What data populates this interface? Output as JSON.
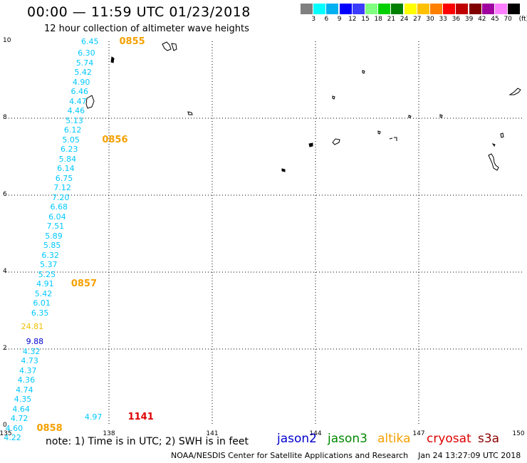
{
  "header": {
    "title": "00:00 — 11:59 UTC 01/23/2018",
    "subtitle": "12 hour collection of altimeter wave heights"
  },
  "color_scale": {
    "unit": "(ft)",
    "colors": [
      "#808080",
      "#00ffff",
      "#00b0f0",
      "#0000ff",
      "#3c3cff",
      "#80ff80",
      "#00d000",
      "#008000",
      "#ffff00",
      "#ffc000",
      "#ff8000",
      "#ff0000",
      "#c00000",
      "#800000",
      "#a000a0",
      "#ff80ff",
      "#000000"
    ],
    "labels": [
      "3",
      "6",
      "9",
      "12",
      "15",
      "18",
      "21",
      "24",
      "27",
      "30",
      "33",
      "36",
      "39",
      "42",
      "45",
      "70"
    ]
  },
  "axes": {
    "y_labels": [
      "10",
      "8",
      "6",
      "4",
      "2",
      "0"
    ],
    "x_labels": [
      "135",
      "138",
      "141",
      "144",
      "147",
      "150"
    ]
  },
  "observations": [
    {
      "v": "6.45",
      "c": "#00c8ff",
      "lon": 137.7,
      "lat": 10.0
    },
    {
      "v": "6.30",
      "c": "#00c8ff",
      "lon": 137.6,
      "lat": 9.7
    },
    {
      "v": "5.74",
      "c": "#00c8ff",
      "lon": 137.55,
      "lat": 9.45
    },
    {
      "v": "5.42",
      "c": "#00c8ff",
      "lon": 137.5,
      "lat": 9.2
    },
    {
      "v": "4.90",
      "c": "#00c8ff",
      "lon": 137.45,
      "lat": 8.95
    },
    {
      "v": "6.46",
      "c": "#00c8ff",
      "lon": 137.4,
      "lat": 8.7
    },
    {
      "v": "4.47",
      "c": "#00c8ff",
      "lon": 137.35,
      "lat": 8.45
    },
    {
      "v": "4.46",
      "c": "#00c8ff",
      "lon": 137.3,
      "lat": 8.2
    },
    {
      "v": "5.13",
      "c": "#00c8ff",
      "lon": 137.25,
      "lat": 7.95
    },
    {
      "v": "6.12",
      "c": "#00c8ff",
      "lon": 137.2,
      "lat": 7.7
    },
    {
      "v": "5.05",
      "c": "#00c8ff",
      "lon": 137.15,
      "lat": 7.45
    },
    {
      "v": "6.23",
      "c": "#00c8ff",
      "lon": 137.1,
      "lat": 7.2
    },
    {
      "v": "5.84",
      "c": "#00c8ff",
      "lon": 137.05,
      "lat": 6.95
    },
    {
      "v": "6.14",
      "c": "#00c8ff",
      "lon": 137.0,
      "lat": 6.7
    },
    {
      "v": "6.75",
      "c": "#00c8ff",
      "lon": 136.95,
      "lat": 6.45
    },
    {
      "v": "7.12",
      "c": "#00c8ff",
      "lon": 136.9,
      "lat": 6.2
    },
    {
      "v": "7.20",
      "c": "#00c8ff",
      "lon": 136.85,
      "lat": 5.95
    },
    {
      "v": "6.68",
      "c": "#00c8ff",
      "lon": 136.8,
      "lat": 5.7
    },
    {
      "v": "6.04",
      "c": "#00c8ff",
      "lon": 136.75,
      "lat": 5.45
    },
    {
      "v": "7.51",
      "c": "#00c8ff",
      "lon": 136.7,
      "lat": 5.2
    },
    {
      "v": "5.89",
      "c": "#00c8ff",
      "lon": 136.65,
      "lat": 4.95
    },
    {
      "v": "5.85",
      "c": "#00c8ff",
      "lon": 136.6,
      "lat": 4.7
    },
    {
      "v": "6.32",
      "c": "#00c8ff",
      "lon": 136.55,
      "lat": 4.45
    },
    {
      "v": "5.37",
      "c": "#00c8ff",
      "lon": 136.5,
      "lat": 4.2
    },
    {
      "v": "5.25",
      "c": "#00c8ff",
      "lon": 136.45,
      "lat": 3.95
    },
    {
      "v": "4.91",
      "c": "#00c8ff",
      "lon": 136.4,
      "lat": 3.7
    },
    {
      "v": "5.42",
      "c": "#00c8ff",
      "lon": 136.35,
      "lat": 3.45
    },
    {
      "v": "6.01",
      "c": "#00c8ff",
      "lon": 136.3,
      "lat": 3.2
    },
    {
      "v": "6.35",
      "c": "#00c8ff",
      "lon": 136.25,
      "lat": 2.95
    },
    {
      "v": "24.81",
      "c": "#f0c000",
      "lon": 136.1,
      "lat": 2.6
    },
    {
      "v": "9.88",
      "c": "#0000cc",
      "lon": 136.1,
      "lat": 2.2
    },
    {
      "v": "4.32",
      "c": "#00c8ff",
      "lon": 136.0,
      "lat": 1.95
    },
    {
      "v": "4.73",
      "c": "#00c8ff",
      "lon": 135.95,
      "lat": 1.7
    },
    {
      "v": "4.37",
      "c": "#00c8ff",
      "lon": 135.9,
      "lat": 1.45
    },
    {
      "v": "4.36",
      "c": "#00c8ff",
      "lon": 135.85,
      "lat": 1.2
    },
    {
      "v": "4.74",
      "c": "#00c8ff",
      "lon": 135.8,
      "lat": 0.95
    },
    {
      "v": "4.35",
      "c": "#00c8ff",
      "lon": 135.75,
      "lat": 0.7
    },
    {
      "v": "4.64",
      "c": "#00c8ff",
      "lon": 135.7,
      "lat": 0.45
    },
    {
      "v": "4.72",
      "c": "#00c8ff",
      "lon": 135.65,
      "lat": 0.2
    },
    {
      "v": "4.60",
      "c": "#00c8ff",
      "lon": 135.5,
      "lat": -0.05
    },
    {
      "v": "4.22",
      "c": "#00c8ff",
      "lon": 135.45,
      "lat": -0.3
    },
    {
      "v": "4.97",
      "c": "#00c8ff",
      "lon": 137.8,
      "lat": 0.25
    }
  ],
  "time_marks": [
    {
      "t": "0855",
      "c": "#f5a000",
      "lon": 138.3,
      "lat": 10.0
    },
    {
      "t": "0856",
      "c": "#f5a000",
      "lon": 137.8,
      "lat": 7.45
    },
    {
      "t": "0857",
      "c": "#f5a000",
      "lon": 136.9,
      "lat": 3.7
    },
    {
      "t": "0858",
      "c": "#f5a000",
      "lon": 135.9,
      "lat": -0.05
    },
    {
      "t": "1141",
      "c": "#dd0000",
      "lon": 138.55,
      "lat": 0.25
    }
  ],
  "note": "note:  1) Time is in UTC;  2) SWH is in feet",
  "legend": [
    {
      "name": "jason2",
      "color": "#0000cc"
    },
    {
      "name": "jason3",
      "color": "#008800"
    },
    {
      "name": "altika",
      "color": "#f5a000"
    },
    {
      "name": "cryosat",
      "color": "#dd0000"
    },
    {
      "name": "s3a",
      "color": "#8b0000"
    }
  ],
  "credit": "NOAA/NESDIS Center for Satellite Applications and Research    Jan 24 13:27:09 UTC 2018"
}
